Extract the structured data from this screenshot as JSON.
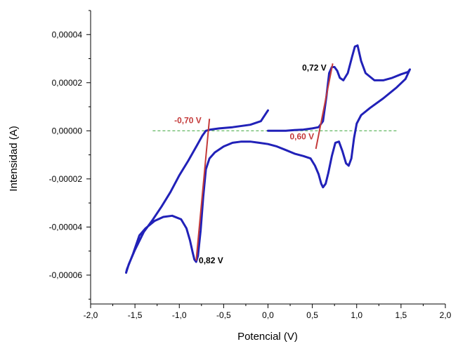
{
  "chart_data": {
    "type": "line",
    "xlabel": "Potencial (V)",
    "ylabel": "Intensidad (A)",
    "xlim": [
      -2.0,
      2.0
    ],
    "ylim": [
      -7.2e-05,
      5e-05
    ],
    "x_ticks": [
      -2.0,
      -1.5,
      -1.0,
      -0.5,
      0.0,
      0.5,
      1.0,
      1.5,
      2.0
    ],
    "x_tick_labels": [
      "-2,0",
      "-1,5",
      "-1,0",
      "-0,5",
      "0,0",
      "0,5",
      "1,0",
      "1,5",
      "2,0"
    ],
    "y_ticks": [
      -6e-05,
      -4e-05,
      -2e-05,
      0.0,
      2e-05,
      4e-05
    ],
    "y_tick_labels": [
      "-0,00006",
      "-0,00004",
      "-0,00002",
      "0,00000",
      "0,00002",
      "0,00004"
    ],
    "grid": false,
    "baseline": {
      "y": 0.0,
      "x_range": [
        -1.3,
        1.45
      ],
      "color": "#3aa63a"
    },
    "series": [
      {
        "color": "#2121b8",
        "points": [
          [
            0.0,
            8.5e-06
          ],
          [
            -0.08,
            4e-06
          ],
          [
            -0.2,
            2.5e-06
          ],
          [
            -0.4,
            1.5e-06
          ],
          [
            -0.55,
            1e-06
          ],
          [
            -0.65,
            5e-07
          ],
          [
            -0.7,
            0.0
          ],
          [
            -0.74,
            -2e-06
          ],
          [
            -0.8,
            -6e-06
          ],
          [
            -0.9,
            -1.25e-05
          ],
          [
            -1.0,
            -1.85e-05
          ],
          [
            -1.1,
            -2.55e-05
          ],
          [
            -1.2,
            -3.15e-05
          ],
          [
            -1.3,
            -3.7e-05
          ],
          [
            -1.4,
            -4.2e-05
          ],
          [
            -1.5,
            -4.95e-05
          ],
          [
            -1.57,
            -5.55e-05
          ],
          [
            -1.6,
            -5.9e-05
          ],
          [
            -1.59,
            -5.75e-05
          ],
          [
            -1.52,
            -5.1e-05
          ],
          [
            -1.45,
            -4.35e-05
          ],
          [
            -1.38,
            -4.05e-05
          ],
          [
            -1.28,
            -3.75e-05
          ],
          [
            -1.18,
            -3.58e-05
          ],
          [
            -1.08,
            -3.53e-05
          ],
          [
            -0.98,
            -3.68e-05
          ],
          [
            -0.92,
            -4.05e-05
          ],
          [
            -0.88,
            -4.55e-05
          ],
          [
            -0.85,
            -5.05e-05
          ],
          [
            -0.83,
            -5.35e-05
          ],
          [
            -0.81,
            -5.45e-05
          ],
          [
            -0.79,
            -5.2e-05
          ],
          [
            -0.76,
            -4.15e-05
          ],
          [
            -0.73,
            -2.75e-05
          ],
          [
            -0.7,
            -1.6e-05
          ],
          [
            -0.66,
            -1.15e-05
          ],
          [
            -0.6,
            -9e-06
          ],
          [
            -0.5,
            -6.5e-06
          ],
          [
            -0.4,
            -5e-06
          ],
          [
            -0.3,
            -4.5e-06
          ],
          [
            -0.2,
            -4.5e-06
          ],
          [
            -0.1,
            -5e-06
          ],
          [
            0.0,
            -5.5e-06
          ],
          [
            0.1,
            -6.5e-06
          ],
          [
            0.2,
            -8e-06
          ],
          [
            0.3,
            -9.5e-06
          ],
          [
            0.4,
            -1.05e-05
          ],
          [
            0.48,
            -1.15e-05
          ],
          [
            0.53,
            -1.45e-05
          ],
          [
            0.57,
            -1.8e-05
          ],
          [
            0.6,
            -2.2e-05
          ],
          [
            0.62,
            -2.35e-05
          ],
          [
            0.65,
            -2.2e-05
          ],
          [
            0.68,
            -1.75e-05
          ],
          [
            0.72,
            -1.05e-05
          ],
          [
            0.76,
            -5e-06
          ],
          [
            0.8,
            -4.5e-06
          ],
          [
            0.84,
            -8.5e-06
          ],
          [
            0.88,
            -1.35e-05
          ],
          [
            0.91,
            -1.45e-05
          ],
          [
            0.94,
            -1.15e-05
          ],
          [
            0.97,
            -3e-06
          ],
          [
            1.0,
            3e-06
          ],
          [
            1.05,
            6.5e-06
          ],
          [
            1.15,
            9.5e-06
          ],
          [
            1.3,
            1.35e-05
          ],
          [
            1.45,
            1.8e-05
          ],
          [
            1.55,
            2.15e-05
          ],
          [
            1.6,
            2.55e-05
          ],
          [
            1.58,
            2.45e-05
          ],
          [
            1.5,
            2.35e-05
          ],
          [
            1.4,
            2.2e-05
          ],
          [
            1.3,
            2.1e-05
          ],
          [
            1.2,
            2.1e-05
          ],
          [
            1.1,
            2.4e-05
          ],
          [
            1.05,
            2.9e-05
          ],
          [
            1.01,
            3.55e-05
          ],
          [
            0.98,
            3.5e-05
          ],
          [
            0.95,
            3.1e-05
          ],
          [
            0.9,
            2.4e-05
          ],
          [
            0.85,
            2.1e-05
          ],
          [
            0.81,
            2.2e-05
          ],
          [
            0.78,
            2.5e-05
          ],
          [
            0.75,
            2.65e-05
          ],
          [
            0.72,
            2.65e-05
          ],
          [
            0.69,
            2.4e-05
          ],
          [
            0.66,
            1.45e-05
          ],
          [
            0.62,
            4e-06
          ],
          [
            0.57,
            1.5e-06
          ],
          [
            0.5,
            1e-06
          ],
          [
            0.4,
            5e-07
          ],
          [
            0.3,
            3e-07
          ],
          [
            0.2,
            0.0
          ],
          [
            0.0,
            0.0
          ]
        ]
      }
    ],
    "tangent_lines": [
      {
        "color": "#c43a3a",
        "from": [
          -0.81,
          -5.4e-05
        ],
        "to": [
          -0.66,
          5e-06
        ]
      },
      {
        "color": "#c43a3a",
        "from": [
          0.54,
          -7.5e-06
        ],
        "to": [
          0.73,
          2.8e-05
        ]
      }
    ],
    "annotations": [
      {
        "text": "-0,70 V",
        "x": -0.75,
        "y": 3.2e-06,
        "align": "end",
        "color": "#c43a3a"
      },
      {
        "text": "0,60 V",
        "x": 0.52,
        "y": -3.5e-06,
        "align": "end",
        "color": "#c43a3a"
      },
      {
        "text": "0,72 V",
        "x": 0.66,
        "y": 2.5e-05,
        "align": "end",
        "color": "#000000"
      },
      {
        "text": "0,82 V",
        "x": -0.78,
        "y": -5.5e-05,
        "align": "start",
        "color": "#000000"
      }
    ]
  }
}
